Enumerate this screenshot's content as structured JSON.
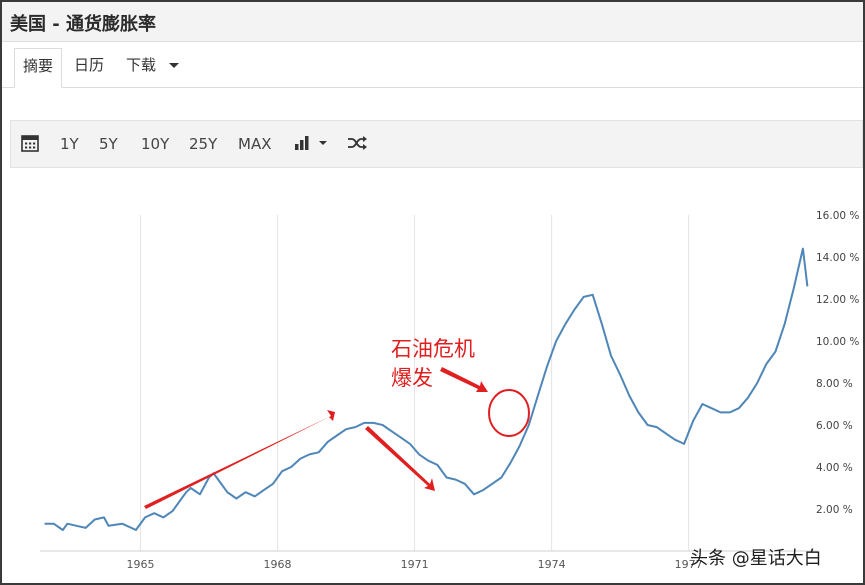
{
  "window": {
    "title": "美国 - 通货膨胀率"
  },
  "tabs": [
    {
      "label": "摘要",
      "active": true
    },
    {
      "label": "日历",
      "active": false
    },
    {
      "label": "下载",
      "active": false,
      "dropdown": true
    }
  ],
  "toolbar": {
    "calendar_icon": "calendar-icon",
    "ranges": [
      "1Y",
      "5Y",
      "10Y",
      "25Y",
      "MAX"
    ],
    "chart_type_icon": "bar-chart-icon",
    "shuffle_icon": "shuffle-icon"
  },
  "chart_data": {
    "type": "line",
    "xlim": [
      1962.8,
      1979.7
    ],
    "ylim": [
      0,
      16
    ],
    "x_ticks": [
      1965,
      1968,
      1971,
      1974,
      1977
    ],
    "x_tick_labels": [
      "1965",
      "1968",
      "1971",
      "1974",
      "1977"
    ],
    "y_ticks": [
      2,
      4,
      6,
      8,
      10,
      12,
      14,
      16
    ],
    "y_tick_labels": [
      "2.00 %",
      "4.00 %",
      "6.00 %",
      "8.00 %",
      "10.00 %",
      "12.00 %",
      "14.00 %",
      "16.00 %"
    ],
    "grid": "vertical",
    "line_color": "#4f86b8",
    "series": [
      {
        "x": [
          1962.9,
          1963.1,
          1963.3,
          1963.4,
          1963.6,
          1963.8,
          1964.0,
          1964.2,
          1964.3,
          1964.6,
          1964.8,
          1964.9,
          1965.1,
          1965.3,
          1965.4,
          1965.5,
          1965.7,
          1965.9,
          1966.0,
          1966.1,
          1966.3,
          1966.5,
          1966.6,
          1966.7,
          1966.9,
          1967.1,
          1967.3,
          1967.5,
          1967.7,
          1967.9,
          1968.1,
          1968.3,
          1968.5,
          1968.7,
          1968.9,
          1969.1,
          1969.3,
          1969.5,
          1969.7,
          1969.9,
          1970.1,
          1970.3,
          1970.5,
          1970.7,
          1970.9,
          1971.1,
          1971.3,
          1971.5,
          1971.7,
          1971.9,
          1972.1,
          1972.3,
          1972.5,
          1972.7,
          1972.9,
          1973.1,
          1973.3,
          1973.5,
          1973.7,
          1973.9,
          1974.1,
          1974.3,
          1974.5,
          1974.7,
          1974.9,
          1975.1,
          1975.3,
          1975.5,
          1975.7,
          1975.9,
          1976.1,
          1976.3,
          1976.5,
          1976.7,
          1976.9,
          1977.1,
          1977.3,
          1977.5,
          1977.7,
          1977.9,
          1978.1,
          1978.3,
          1978.5,
          1978.7,
          1978.9,
          1979.1,
          1979.3,
          1979.5,
          1979.6
        ],
        "y": [
          1.3,
          1.3,
          1.0,
          1.3,
          1.2,
          1.1,
          1.5,
          1.6,
          1.2,
          1.3,
          1.1,
          1.0,
          1.6,
          1.8,
          1.7,
          1.6,
          1.9,
          2.5,
          2.8,
          3.0,
          2.7,
          3.5,
          3.7,
          3.4,
          2.8,
          2.5,
          2.8,
          2.6,
          2.9,
          3.2,
          3.8,
          4.0,
          4.4,
          4.6,
          4.7,
          5.2,
          5.5,
          5.8,
          5.9,
          6.1,
          6.1,
          6.0,
          5.7,
          5.4,
          5.1,
          4.6,
          4.3,
          4.1,
          3.5,
          3.4,
          3.2,
          2.7,
          2.9,
          3.2,
          3.5,
          4.2,
          5.0,
          6.0,
          7.4,
          8.8,
          10.0,
          10.8,
          11.5,
          12.1,
          12.2,
          10.8,
          9.3,
          8.4,
          7.4,
          6.6,
          6.0,
          5.9,
          5.6,
          5.3,
          5.1,
          6.2,
          7.0,
          6.8,
          6.6,
          6.6,
          6.8,
          7.3,
          8.0,
          8.9,
          9.5,
          10.8,
          12.5,
          14.4,
          12.6
        ]
      }
    ]
  },
  "annotations": {
    "text_line1": "石油危机",
    "text_line2": "爆发",
    "color": "#e02020"
  },
  "watermark": "头条 @星话大白"
}
